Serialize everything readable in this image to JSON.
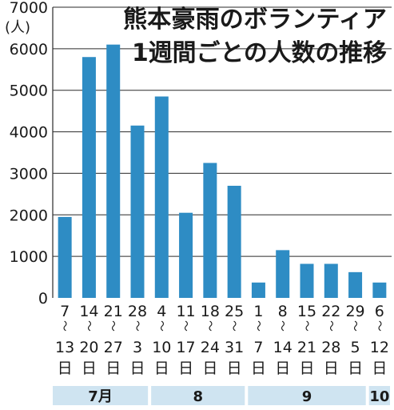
{
  "chart_data": {
    "type": "bar",
    "title": "熊本豪雨のボランティア",
    "subtitle": "1週間ごとの人数の推移",
    "ylabel": "(人)",
    "ylim": [
      0,
      7000
    ],
    "yticks": [
      "0",
      "1000",
      "2000",
      "3000",
      "4000",
      "5000",
      "6000",
      "7000"
    ],
    "grid": true,
    "bar_color": "#2e8cc4",
    "categories": [
      {
        "start": "7",
        "end": "13",
        "unit": "日"
      },
      {
        "start": "14",
        "end": "20",
        "unit": "日"
      },
      {
        "start": "21",
        "end": "27",
        "unit": "日"
      },
      {
        "start": "28",
        "end": "3",
        "unit": "日"
      },
      {
        "start": "4",
        "end": "10",
        "unit": "日"
      },
      {
        "start": "11",
        "end": "17",
        "unit": "日"
      },
      {
        "start": "18",
        "end": "24",
        "unit": "日"
      },
      {
        "start": "25",
        "end": "31",
        "unit": "日"
      },
      {
        "start": "1",
        "end": "7",
        "unit": "日"
      },
      {
        "start": "8",
        "end": "14",
        "unit": "日"
      },
      {
        "start": "15",
        "end": "21",
        "unit": "日"
      },
      {
        "start": "22",
        "end": "28",
        "unit": "日"
      },
      {
        "start": "29",
        "end": "5",
        "unit": "日"
      },
      {
        "start": "6",
        "end": "12",
        "unit": "日"
      }
    ],
    "range_mark": "〜",
    "values": [
      1950,
      5800,
      6100,
      4150,
      4850,
      2050,
      3250,
      2700,
      370,
      1150,
      820,
      820,
      620,
      370
    ],
    "months": [
      {
        "label": "7月",
        "from": 0,
        "to": 3
      },
      {
        "label": "8",
        "from": 4,
        "to": 7
      },
      {
        "label": "9",
        "from": 8,
        "to": 12
      },
      {
        "label": "10",
        "from": 13,
        "to": 13
      }
    ],
    "month_band_color": "#cfe4f1"
  }
}
